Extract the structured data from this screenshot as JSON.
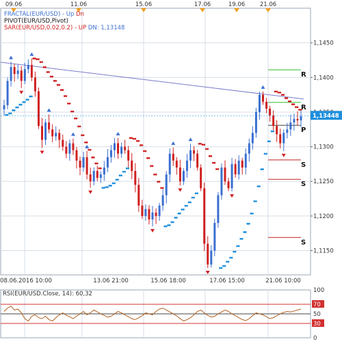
{
  "chart_data": [
    {
      "type": "candlestick",
      "title": "",
      "legend": [
        {
          "text": "FRACTAL(EUR/USD) - ",
          "parts": [
            {
              "text": "Up",
              "color": "#3a6fd0"
            },
            {
              "text": "Dn",
              "color": "#d02020"
            }
          ]
        },
        {
          "text": "PIVOT(EUR/USD,Pivot)"
        },
        {
          "text": "SAR(EUR/USD,0.02,0.2) - ",
          "parts": [
            {
              "text": "UP",
              "color": "#d02020"
            },
            {
              "text": "DN: 1,13148",
              "color": "#3a6fd0"
            }
          ]
        }
      ],
      "top_date_labels": [
        "09.06",
        "11.06",
        "15.06",
        "17.06",
        "19.06",
        "21.06"
      ],
      "bottom_time_labels": [
        "08.06.2016 10:00",
        "13.06 21:00",
        "15.06 18:00",
        "17.06 15:00",
        "21.06 10:00"
      ],
      "y_axis": {
        "ylim": [
          1.1115,
          1.15
        ],
        "ticks": [
          "1,1450",
          "1,1400",
          "1,1350",
          "1,1300",
          "1,1250",
          "1,1200",
          "1,1150"
        ]
      },
      "current_price": {
        "label": "1,13448",
        "value": 1.13448,
        "color": "#1e8fdc"
      },
      "pivot_levels": [
        {
          "label": "R",
          "value": 1.1411,
          "color": "#2bbf2b"
        },
        {
          "label": "R",
          "value": 1.1364,
          "color": "#2bbf2b"
        },
        {
          "label": "P",
          "value": 1.1331,
          "color": "#444444"
        },
        {
          "label": "S",
          "value": 1.1281,
          "color": "#c02020"
        },
        {
          "label": "S",
          "value": 1.1253,
          "color": "#c02020"
        },
        {
          "label": "S",
          "value": 1.1169,
          "color": "#c02020"
        }
      ],
      "trendline": {
        "from": 1.1422,
        "to": 1.1369,
        "color": "#7a7acc"
      },
      "price_path": [
        1.136,
        1.1395,
        1.1415,
        1.1405,
        1.141,
        1.1395,
        1.1412,
        1.1418,
        1.14,
        1.138,
        1.133,
        1.131,
        1.1335,
        1.1325,
        1.1315,
        1.132,
        1.131,
        1.13,
        1.129,
        1.1305,
        1.1295,
        1.128,
        1.127,
        1.1285,
        1.126,
        1.125,
        1.1265,
        1.1255,
        1.126,
        1.127,
        1.1285,
        1.1295,
        1.1305,
        1.129,
        1.13,
        1.1295,
        1.128,
        1.1265,
        1.1245,
        1.1215,
        1.12,
        1.121,
        1.1195,
        1.1205,
        1.12,
        1.1215,
        1.123,
        1.126,
        1.129,
        1.128,
        1.127,
        1.125,
        1.1265,
        1.128,
        1.1295,
        1.129,
        1.127,
        1.124,
        1.116,
        1.113,
        1.115,
        1.119,
        1.123,
        1.127,
        1.125,
        1.124,
        1.1275,
        1.126,
        1.128,
        1.127,
        1.129,
        1.1305,
        1.132,
        1.135,
        1.1375,
        1.1365,
        1.1355,
        1.1345,
        1.133,
        1.1318,
        1.1305,
        1.132,
        1.1325,
        1.1335,
        1.134,
        1.1338,
        1.1344
      ],
      "colors": {
        "up": "#3a6fd0",
        "down": "#d02020",
        "sar_up": "#d02020",
        "sar_dn": "#1e8fdc",
        "grid": "#d6dde8"
      }
    },
    {
      "type": "line",
      "title": "RSI(EUR/USD.Close, 14): 60,32",
      "y_axis": {
        "ylim": [
          0,
          100
        ],
        "ticks": [
          "100",
          "70",
          "50",
          "30",
          "0"
        ]
      },
      "levels": [
        {
          "value": 70,
          "color": "#d23030"
        },
        {
          "value": 50,
          "color": "#444444"
        },
        {
          "value": 30,
          "color": "#d23030"
        }
      ],
      "values": [
        55,
        62,
        66,
        58,
        60,
        52,
        40,
        35,
        45,
        48,
        42,
        40,
        45,
        38,
        35,
        42,
        48,
        52,
        47,
        44,
        40,
        45,
        50,
        55,
        48,
        52,
        58,
        54,
        50,
        47,
        43,
        45,
        50,
        55,
        52,
        48,
        44,
        40,
        38,
        42,
        46,
        52,
        50,
        48,
        55,
        60,
        62,
        58,
        54,
        50,
        46,
        40,
        35,
        38,
        42,
        48,
        55,
        58,
        52,
        47,
        43,
        45,
        50,
        54,
        58,
        55,
        50,
        46,
        42,
        38,
        36,
        40,
        46,
        52,
        50,
        48,
        44,
        40,
        42,
        46,
        50,
        53,
        55,
        54,
        56,
        58,
        60
      ],
      "color": "#b06020"
    }
  ]
}
